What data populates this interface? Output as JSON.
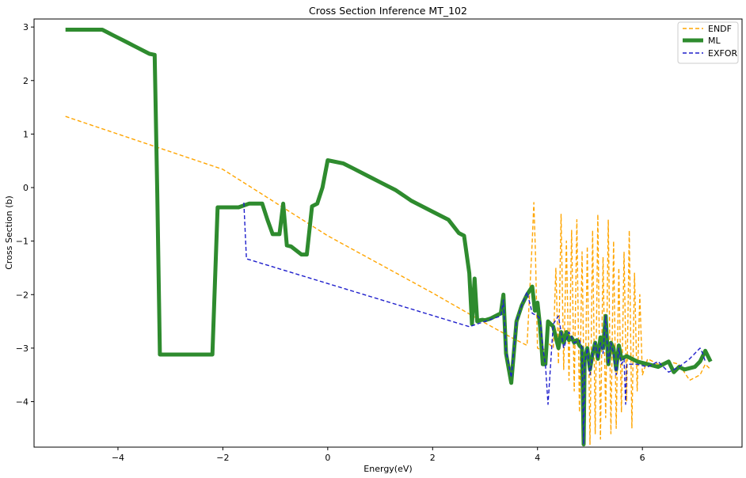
{
  "chart_data": {
    "type": "line",
    "title": "Cross Section Inference MT_102",
    "xlabel": "Energy(eV)",
    "ylabel": "Cross Section (b)",
    "xlim": [
      -5.6,
      7.9
    ],
    "ylim": [
      -4.85,
      3.15
    ],
    "xticks": [
      -4,
      -2,
      0,
      2,
      4,
      6
    ],
    "yticks": [
      -4,
      -3,
      -2,
      -1,
      0,
      1,
      2,
      3
    ],
    "xtick_labels": [
      "−4",
      "−2",
      "0",
      "2",
      "4",
      "6"
    ],
    "ytick_labels": [
      "−4",
      "−3",
      "−2",
      "−1",
      "0",
      "1",
      "2",
      "3"
    ],
    "grid": false,
    "legend": {
      "position": "upper-right",
      "entries": [
        "ENDF",
        "ML",
        "EXFOR"
      ]
    },
    "series": [
      {
        "name": "ENDF",
        "color": "#FFA500",
        "style": "dashed",
        "x": [
          -5.0,
          -2.0,
          0.0,
          2.0,
          3.0,
          3.5,
          3.8,
          3.9,
          3.93,
          3.96,
          4.0,
          4.1,
          4.2,
          4.3,
          4.35,
          4.4,
          4.45,
          4.5,
          4.55,
          4.6,
          4.65,
          4.7,
          4.75,
          4.8,
          4.85,
          4.9,
          4.95,
          5.0,
          5.05,
          5.1,
          5.15,
          5.2,
          5.25,
          5.3,
          5.35,
          5.4,
          5.45,
          5.5,
          5.55,
          5.6,
          5.65,
          5.7,
          5.75,
          5.8,
          5.85,
          5.9,
          5.95,
          6.0,
          6.1,
          6.3,
          6.5,
          6.7,
          6.9,
          7.1,
          7.2,
          7.3
        ],
        "y": [
          1.33,
          0.34,
          -0.9,
          -1.97,
          -2.53,
          -2.8,
          -2.95,
          -1.0,
          -0.28,
          -1.2,
          -3.0,
          -3.05,
          -2.9,
          -3.0,
          -1.5,
          -3.3,
          -0.5,
          -3.4,
          -1.0,
          -3.6,
          -0.8,
          -3.8,
          -0.6,
          -4.2,
          -1.2,
          -4.5,
          -1.1,
          -4.8,
          -0.8,
          -4.6,
          -0.5,
          -4.7,
          -1.3,
          -4.3,
          -0.6,
          -4.6,
          -1.0,
          -4.5,
          -1.5,
          -4.2,
          -1.2,
          -4.0,
          -0.8,
          -4.5,
          -1.6,
          -3.8,
          -2.0,
          -3.5,
          -3.2,
          -3.3,
          -3.25,
          -3.3,
          -3.6,
          -3.5,
          -3.3,
          -3.4
        ]
      },
      {
        "name": "ML",
        "color": "#2E8B2E",
        "style": "solid",
        "x": [
          -5.0,
          -4.3,
          -4.2,
          -4.1,
          -4.0,
          -3.9,
          -3.8,
          -3.7,
          -3.6,
          -3.5,
          -3.4,
          -3.3,
          -3.25,
          -3.2,
          -2.3,
          -2.2,
          -2.1,
          -1.9,
          -1.7,
          -1.5,
          -1.4,
          -1.25,
          -1.15,
          -1.05,
          -1.0,
          -0.92,
          -0.85,
          -0.78,
          -0.7,
          -0.5,
          -0.4,
          -0.3,
          -0.2,
          -0.1,
          0.0,
          0.3,
          0.5,
          0.8,
          1.0,
          1.3,
          1.6,
          2.0,
          2.3,
          2.5,
          2.6,
          2.7,
          2.75,
          2.8,
          2.85,
          2.9,
          2.95,
          3.0,
          3.1,
          3.3,
          3.35,
          3.4,
          3.5,
          3.6,
          3.7,
          3.8,
          3.9,
          3.95,
          4.0,
          4.05,
          4.1,
          4.15,
          4.2,
          4.3,
          4.4,
          4.45,
          4.5,
          4.55,
          4.6,
          4.65,
          4.7,
          4.75,
          4.8,
          4.85,
          4.88,
          4.9,
          4.95,
          5.0,
          5.05,
          5.1,
          5.15,
          5.2,
          5.25,
          5.3,
          5.35,
          5.4,
          5.45,
          5.5,
          5.55,
          5.6,
          5.7,
          5.9,
          6.1,
          6.3,
          6.5,
          6.6,
          6.7,
          6.8,
          7.0,
          7.1,
          7.2,
          7.3
        ],
        "y": [
          2.95,
          2.95,
          2.9,
          2.85,
          2.8,
          2.75,
          2.7,
          2.65,
          2.6,
          2.55,
          2.5,
          2.48,
          -0.1,
          -3.12,
          -3.12,
          -3.12,
          -0.37,
          -0.37,
          -0.37,
          -0.3,
          -0.3,
          -0.3,
          -0.6,
          -0.87,
          -0.87,
          -0.87,
          -0.3,
          -1.08,
          -1.1,
          -1.25,
          -1.25,
          -0.35,
          -0.3,
          0.0,
          0.51,
          0.45,
          0.35,
          0.2,
          0.1,
          -0.05,
          -0.25,
          -0.45,
          -0.6,
          -0.85,
          -0.9,
          -1.6,
          -2.55,
          -1.7,
          -2.5,
          -2.48,
          -2.47,
          -2.48,
          -2.45,
          -2.35,
          -2.0,
          -3.1,
          -3.65,
          -2.5,
          -2.2,
          -2.0,
          -1.85,
          -2.3,
          -2.15,
          -2.6,
          -3.3,
          -3.3,
          -2.5,
          -2.6,
          -3.0,
          -2.7,
          -2.9,
          -2.7,
          -2.85,
          -2.8,
          -2.9,
          -2.85,
          -2.95,
          -3.0,
          -4.8,
          -3.2,
          -3.0,
          -3.4,
          -3.1,
          -2.9,
          -3.2,
          -2.8,
          -3.0,
          -2.4,
          -3.3,
          -2.9,
          -3.0,
          -3.4,
          -2.95,
          -3.2,
          -3.15,
          -3.25,
          -3.3,
          -3.35,
          -3.25,
          -3.45,
          -3.35,
          -3.4,
          -3.35,
          -3.25,
          -3.05,
          -3.25
        ]
      },
      {
        "name": "EXFOR",
        "color": "#1F1FCC",
        "style": "dashed",
        "x": [
          -1.6,
          -1.55,
          2.7,
          3.3,
          3.35,
          3.4,
          3.5,
          3.6,
          3.7,
          3.8,
          3.9,
          4.0,
          4.05,
          4.1,
          4.15,
          4.2,
          4.3,
          4.4,
          4.5,
          4.6,
          4.7,
          4.8,
          4.85,
          4.88,
          4.9,
          4.95,
          5.0,
          5.05,
          5.1,
          5.15,
          5.2,
          5.25,
          5.3,
          5.35,
          5.4,
          5.45,
          5.5,
          5.55,
          5.6,
          5.65,
          5.68,
          5.7,
          5.9,
          6.1,
          6.3,
          6.5,
          6.7,
          6.9,
          7.1,
          7.15,
          7.2
        ],
        "y": [
          -0.28,
          -1.33,
          -2.6,
          -2.4,
          -2.1,
          -3.05,
          -3.55,
          -2.5,
          -2.2,
          -1.95,
          -2.35,
          -2.4,
          -2.45,
          -3.0,
          -3.3,
          -4.05,
          -2.55,
          -2.4,
          -3.0,
          -2.7,
          -2.9,
          -2.85,
          -3.0,
          -4.8,
          -3.3,
          -3.0,
          -3.5,
          -3.1,
          -2.9,
          -3.2,
          -2.9,
          -3.1,
          -2.4,
          -3.3,
          -2.9,
          -3.1,
          -3.5,
          -3.0,
          -3.3,
          -3.2,
          -4.05,
          -3.3,
          -3.3,
          -3.35,
          -3.25,
          -3.45,
          -3.35,
          -3.2,
          -3.0,
          -3.1,
          -3.25
        ]
      }
    ]
  }
}
